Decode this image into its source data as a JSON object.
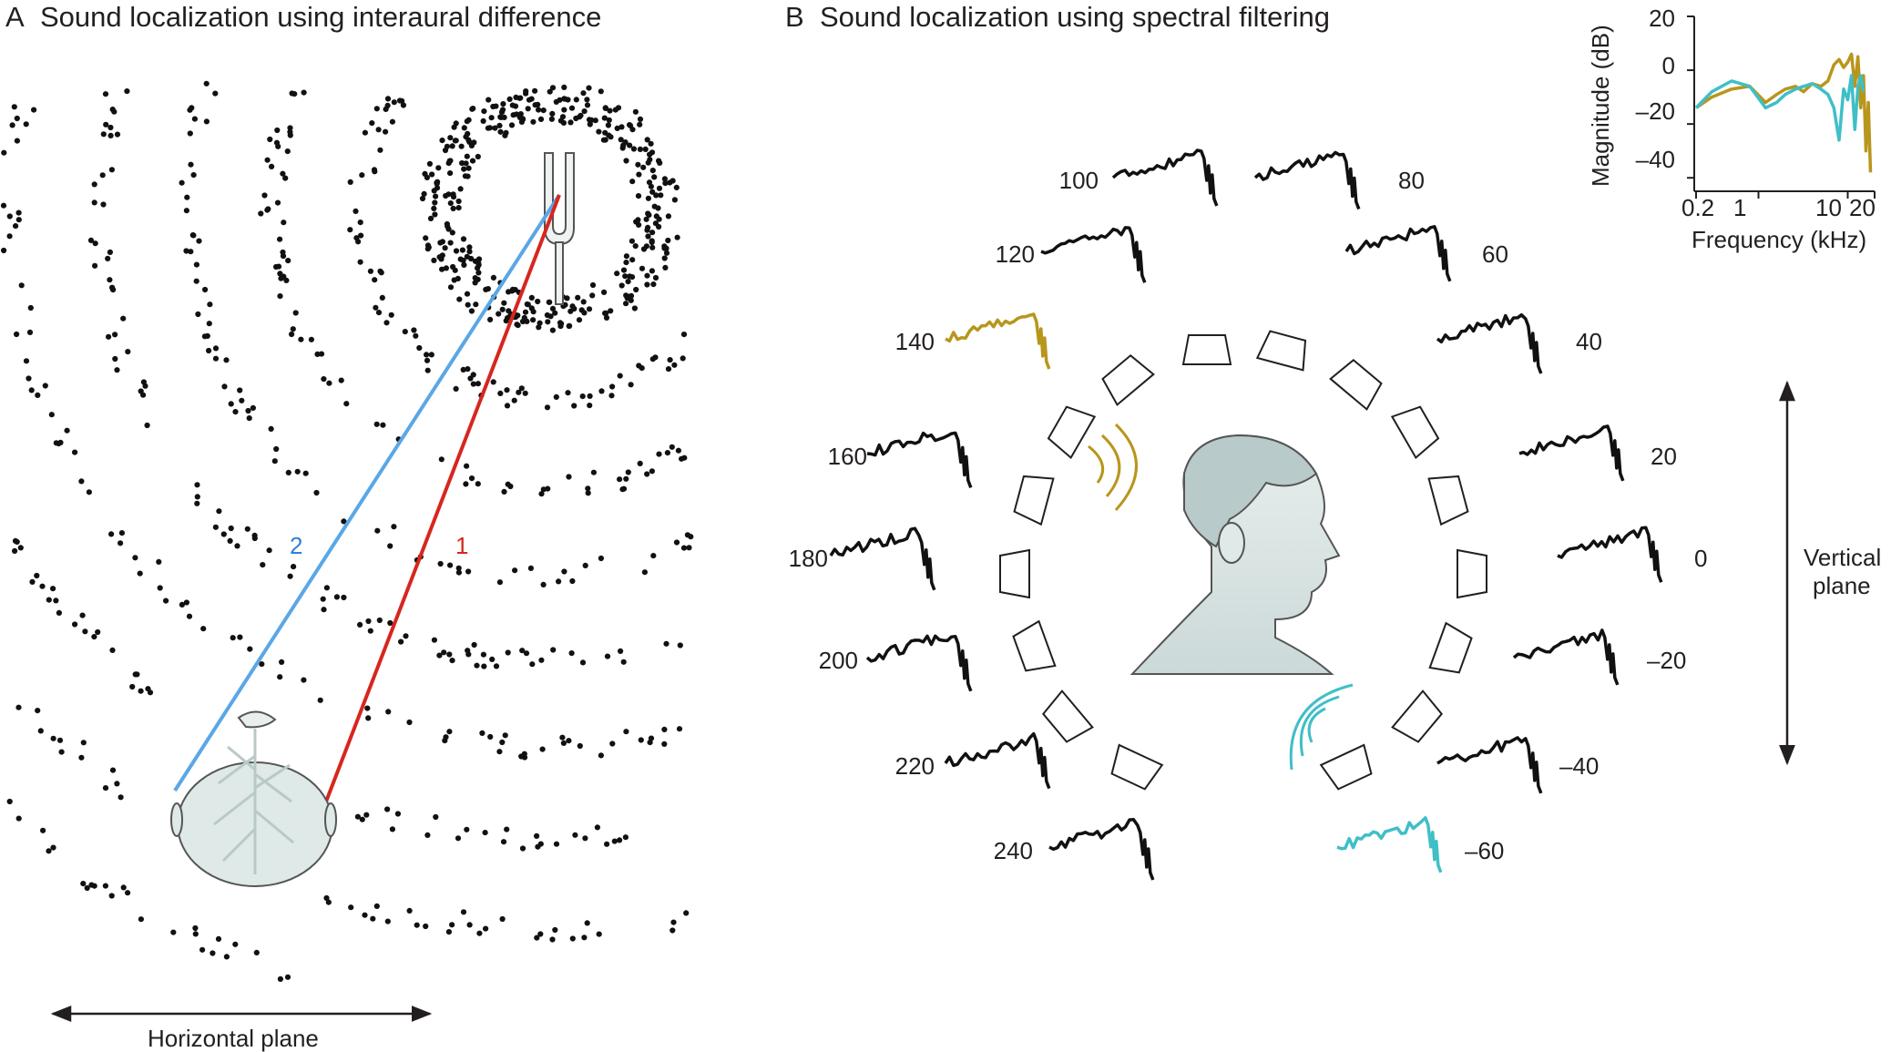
{
  "panel_a": {
    "letter": "A",
    "title": "Sound localization using interaural difference",
    "path_labels": [
      "2",
      "1"
    ],
    "axis_label": "Horizontal plane",
    "colors": {
      "path_1": "#d7261e",
      "path_2": "#5aa7e6",
      "wave_dots": "#111111",
      "head": "#dfe9e8"
    }
  },
  "panel_b": {
    "letter": "B",
    "title": "Sound localization using spectral filtering",
    "axis_label": [
      "Vertical",
      "plane"
    ],
    "elevations": [
      "100",
      "80",
      "120",
      "60",
      "140",
      "40",
      "160",
      "20",
      "180",
      "0",
      "200",
      "–20",
      "220",
      "–40",
      "240",
      "–60"
    ],
    "colors": {
      "highlight_140": "#b8961c",
      "highlight_minus60": "#3fbfc6",
      "default": "#111111"
    },
    "inset": {
      "y_label": "Magnitude (dB)",
      "x_label": "Frequency (kHz)",
      "y_ticks": [
        "20",
        "0",
        "–20",
        "–40"
      ],
      "x_ticks": [
        "0.2",
        "1",
        "10",
        "20"
      ]
    }
  },
  "chart_data": {
    "type": "line",
    "xlabel": "Frequency (kHz)",
    "ylabel": "Magnitude (dB)",
    "xscale": "log",
    "xlim": [
      0.2,
      20
    ],
    "ylim": [
      -45,
      20
    ],
    "series": [
      {
        "color": "#b8961c",
        "x": [
          0.2,
          0.3,
          0.5,
          0.8,
          1.2,
          1.6,
          2.0,
          2.6,
          3.2,
          4,
          5,
          6,
          7,
          8,
          9,
          10,
          11,
          12,
          13,
          14,
          15,
          16,
          17,
          18
        ],
        "y": [
          -14,
          -10,
          -7,
          -6,
          -12,
          -9,
          -7,
          -6,
          -8,
          -5,
          -6,
          -4,
          2,
          4,
          1,
          3,
          6,
          -6,
          5,
          -14,
          -2,
          -30,
          -12,
          -38
        ]
      },
      {
        "color": "#3fbfc6",
        "x": [
          0.2,
          0.3,
          0.5,
          0.8,
          1.2,
          1.6,
          2.0,
          2.6,
          3.2,
          4,
          5,
          6,
          7,
          8,
          9,
          10,
          11,
          12,
          13,
          14,
          15
        ],
        "y": [
          -14,
          -8,
          -4,
          -6,
          -14,
          -12,
          -9,
          -7,
          -6,
          -5,
          -7,
          -9,
          -14,
          -26,
          -7,
          -11,
          -2,
          -22,
          -6,
          -2,
          -8
        ]
      }
    ]
  }
}
